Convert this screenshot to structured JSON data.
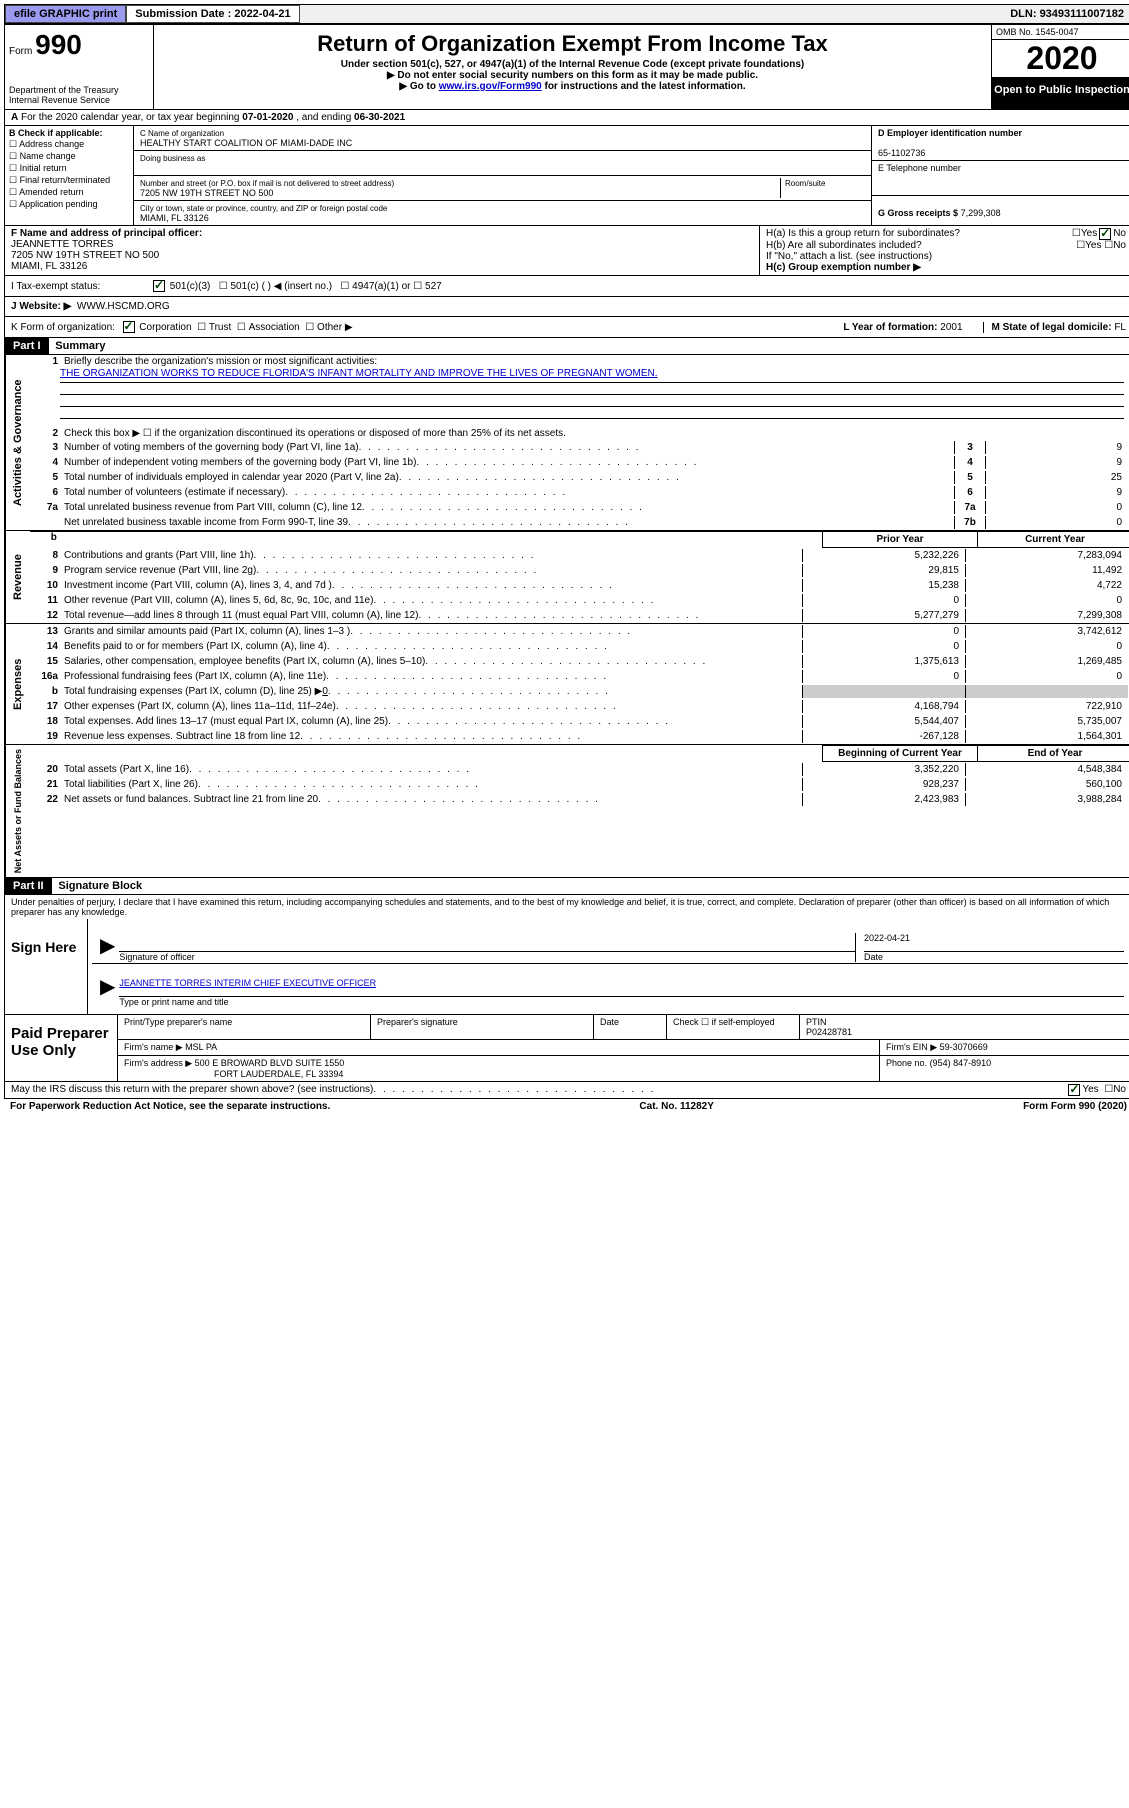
{
  "topbar": {
    "efile": "efile GRAPHIC print",
    "submission_label": "Submission Date :",
    "submission_date": "2022-04-21",
    "dln_label": "DLN:",
    "dln": "93493111007182"
  },
  "header": {
    "form_label": "Form",
    "form_number": "990",
    "title": "Return of Organization Exempt From Income Tax",
    "subtitle": "Under section 501(c), 527, or 4947(a)(1) of the Internal Revenue Code (except private foundations)",
    "note1": "▶ Do not enter social security numbers on this form as it may be made public.",
    "note2_pre": "▶ Go to ",
    "note2_link": "www.irs.gov/Form990",
    "note2_post": " for instructions and the latest information.",
    "dept": "Department of the Treasury\nInternal Revenue Service",
    "omb": "OMB No. 1545-0047",
    "year": "2020",
    "open_public": "Open to Public Inspection"
  },
  "line_a": {
    "text_pre": "For the 2020 calendar year, or tax year beginning ",
    "begin": "07-01-2020",
    "mid": " , and ending ",
    "end": "06-30-2021"
  },
  "section_b": {
    "label": "B Check if applicable:",
    "items": [
      "Address change",
      "Name change",
      "Initial return",
      "Final return/terminated",
      "Amended return",
      "Application pending"
    ]
  },
  "section_c": {
    "name_label": "C Name of organization",
    "name": "HEALTHY START COALITION OF MIAMI-DADE INC",
    "dba_label": "Doing business as",
    "dba": "",
    "street_label": "Number and street (or P.O. box if mail is not delivered to street address)",
    "room_label": "Room/suite",
    "street": "7205 NW 19TH STREET NO 500",
    "city_label": "City or town, state or province, country, and ZIP or foreign postal code",
    "city": "MIAMI, FL  33126"
  },
  "section_d": {
    "ein_label": "D Employer identification number",
    "ein": "65-1102736",
    "phone_label": "E Telephone number",
    "phone": "",
    "gross_label": "G Gross receipts $",
    "gross": "7,299,308"
  },
  "section_f": {
    "label": "F Name and address of principal officer:",
    "name": "JEANNETTE TORRES",
    "street": "7205 NW 19TH STREET NO 500",
    "city": "MIAMI, FL  33126"
  },
  "section_h": {
    "ha_label": "H(a)  Is this a group return for subordinates?",
    "ha_yes": "Yes",
    "ha_no": "No",
    "hb_label": "H(b)  Are all subordinates included?",
    "hb_note": "If \"No,\" attach a list. (see instructions)",
    "hc_label": "H(c)  Group exemption number ▶"
  },
  "row_i": {
    "label": "I   Tax-exempt status:",
    "opt1": "501(c)(3)",
    "opt2": "501(c) (  ) ◀ (insert no.)",
    "opt3": "4947(a)(1) or",
    "opt4": "527"
  },
  "row_j": {
    "label": "J   Website: ▶",
    "value": "WWW.HSCMD.ORG"
  },
  "row_k": {
    "label": "K Form of organization:",
    "opts": [
      "Corporation",
      "Trust",
      "Association",
      "Other ▶"
    ],
    "l_label": "L Year of formation:",
    "l_val": "2001",
    "m_label": "M State of legal domicile:",
    "m_val": "FL"
  },
  "part1": {
    "header": "Part I",
    "title": "Summary",
    "side_label": "Activities & Governance",
    "line1_label": "Briefly describe the organization's mission or most significant activities:",
    "line1_text": "THE ORGANIZATION WORKS TO REDUCE FLORIDA'S INFANT MORTALITY AND IMPROVE THE LIVES OF PREGNANT WOMEN.",
    "line2": "Check this box ▶ ☐  if the organization discontinued its operations or disposed of more than 25% of its net assets.",
    "lines": [
      {
        "num": "3",
        "text": "Number of voting members of the governing body (Part VI, line 1a)",
        "box": "3",
        "val": "9"
      },
      {
        "num": "4",
        "text": "Number of independent voting members of the governing body (Part VI, line 1b)",
        "box": "4",
        "val": "9"
      },
      {
        "num": "5",
        "text": "Total number of individuals employed in calendar year 2020 (Part V, line 2a)",
        "box": "5",
        "val": "25"
      },
      {
        "num": "6",
        "text": "Total number of volunteers (estimate if necessary)",
        "box": "6",
        "val": "9"
      },
      {
        "num": "7a",
        "text": "Total unrelated business revenue from Part VIII, column (C), line 12",
        "box": "7a",
        "val": "0"
      },
      {
        "num": "",
        "text": "Net unrelated business taxable income from Form 990-T, line 39",
        "box": "7b",
        "val": "0"
      }
    ]
  },
  "revenue": {
    "side_label": "Revenue",
    "col1": "Prior Year",
    "col2": "Current Year",
    "lines": [
      {
        "num": "8",
        "text": "Contributions and grants (Part VIII, line 1h)",
        "v1": "5,232,226",
        "v2": "7,283,094"
      },
      {
        "num": "9",
        "text": "Program service revenue (Part VIII, line 2g)",
        "v1": "29,815",
        "v2": "11,492"
      },
      {
        "num": "10",
        "text": "Investment income (Part VIII, column (A), lines 3, 4, and 7d )",
        "v1": "15,238",
        "v2": "4,722"
      },
      {
        "num": "11",
        "text": "Other revenue (Part VIII, column (A), lines 5, 6d, 8c, 9c, 10c, and 11e)",
        "v1": "0",
        "v2": "0"
      },
      {
        "num": "12",
        "text": "Total revenue—add lines 8 through 11 (must equal Part VIII, column (A), line 12)",
        "v1": "5,277,279",
        "v2": "7,299,308"
      }
    ]
  },
  "expenses": {
    "side_label": "Expenses",
    "lines": [
      {
        "num": "13",
        "text": "Grants and similar amounts paid (Part IX, column (A), lines 1–3 )",
        "v1": "0",
        "v2": "3,742,612"
      },
      {
        "num": "14",
        "text": "Benefits paid to or for members (Part IX, column (A), line 4)",
        "v1": "0",
        "v2": "0"
      },
      {
        "num": "15",
        "text": "Salaries, other compensation, employee benefits (Part IX, column (A), lines 5–10)",
        "v1": "1,375,613",
        "v2": "1,269,485"
      },
      {
        "num": "16a",
        "text": "Professional fundraising fees (Part IX, column (A), line 11e)",
        "v1": "0",
        "v2": "0"
      },
      {
        "num": "b",
        "text": "Total fundraising expenses (Part IX, column (D), line 25) ▶",
        "v1": "gray",
        "v2": "gray",
        "extra": "0"
      },
      {
        "num": "17",
        "text": "Other expenses (Part IX, column (A), lines 11a–11d, 11f–24e)",
        "v1": "4,168,794",
        "v2": "722,910"
      },
      {
        "num": "18",
        "text": "Total expenses. Add lines 13–17 (must equal Part IX, column (A), line 25)",
        "v1": "5,544,407",
        "v2": "5,735,007"
      },
      {
        "num": "19",
        "text": "Revenue less expenses. Subtract line 18 from line 12",
        "v1": "-267,128",
        "v2": "1,564,301"
      }
    ]
  },
  "netassets": {
    "side_label": "Net Assets or Fund Balances",
    "col1": "Beginning of Current Year",
    "col2": "End of Year",
    "lines": [
      {
        "num": "20",
        "text": "Total assets (Part X, line 16)",
        "v1": "3,352,220",
        "v2": "4,548,384"
      },
      {
        "num": "21",
        "text": "Total liabilities (Part X, line 26)",
        "v1": "928,237",
        "v2": "560,100"
      },
      {
        "num": "22",
        "text": "Net assets or fund balances. Subtract line 21 from line 20",
        "v1": "2,423,983",
        "v2": "3,988,284"
      }
    ]
  },
  "part2": {
    "header": "Part II",
    "title": "Signature Block",
    "penalties": "Under penalties of perjury, I declare that I have examined this return, including accompanying schedules and statements, and to the best of my knowledge and belief, it is true, correct, and complete. Declaration of preparer (other than officer) is based on all information of which preparer has any knowledge."
  },
  "sign": {
    "label": "Sign Here",
    "sig_label": "Signature of officer",
    "date_label": "Date",
    "date": "2022-04-21",
    "name": "JEANNETTE TORRES INTERIM CHIEF EXECUTIVE OFFICER",
    "name_label": "Type or print name and title"
  },
  "preparer": {
    "label": "Paid Preparer Use Only",
    "print_label": "Print/Type preparer's name",
    "sig_label": "Preparer's signature",
    "date_label": "Date",
    "check_label": "Check ☐ if self-employed",
    "ptin_label": "PTIN",
    "ptin": "P02428781",
    "firm_name_label": "Firm's name    ▶",
    "firm_name": "MSL PA",
    "firm_ein_label": "Firm's EIN ▶",
    "firm_ein": "59-3070669",
    "firm_addr_label": "Firm's address ▶",
    "firm_addr1": "500 E BROWARD BLVD SUITE 1550",
    "firm_addr2": "FORT LAUDERDALE, FL  33394",
    "phone_label": "Phone no.",
    "phone": "(954) 847-8910"
  },
  "footer": {
    "discuss": "May the IRS discuss this return with the preparer shown above? (see instructions)",
    "yes": "Yes",
    "no": "No",
    "paperwork": "For Paperwork Reduction Act Notice, see the separate instructions.",
    "cat": "Cat. No. 11282Y",
    "form": "Form 990 (2020)"
  }
}
